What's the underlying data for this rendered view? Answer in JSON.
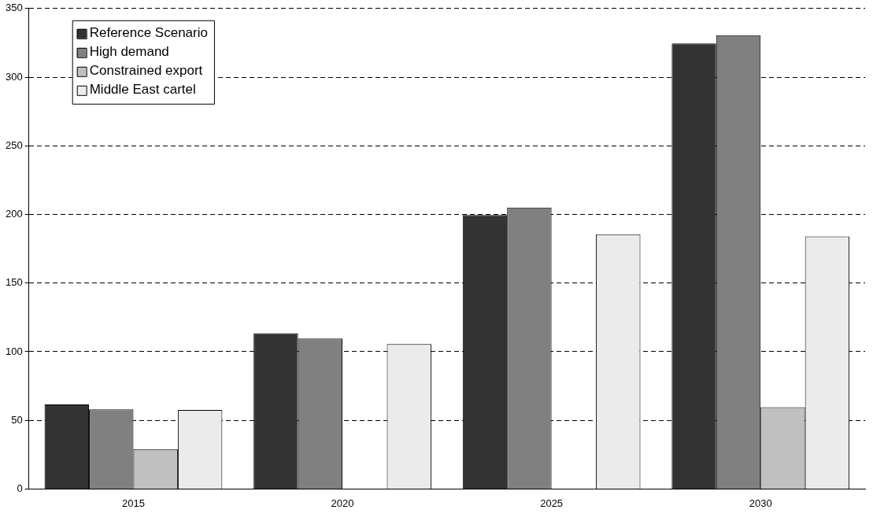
{
  "chart_data": {
    "type": "bar",
    "categories": [
      "2015",
      "2020",
      "2025",
      "2030"
    ],
    "series": [
      {
        "name": "Reference Scenario",
        "color": "#333333",
        "values": [
          61.5,
          113.5,
          199.5,
          324.5
        ]
      },
      {
        "name": "High demand",
        "color": "#808080",
        "values": [
          58,
          109.5,
          205,
          330.5
        ]
      },
      {
        "name": "Constrained export",
        "color": "#c0c0c0",
        "values": [
          29,
          null,
          null,
          59.5
        ]
      },
      {
        "name": "Middle East cartel",
        "color": "#ebebeb",
        "values": [
          57.5,
          105.5,
          185.5,
          184
        ]
      }
    ],
    "ylim": [
      0,
      350
    ],
    "yticks": [
      0,
      50,
      100,
      150,
      200,
      250,
      300,
      350
    ],
    "grid": "y",
    "legend": "top left"
  }
}
